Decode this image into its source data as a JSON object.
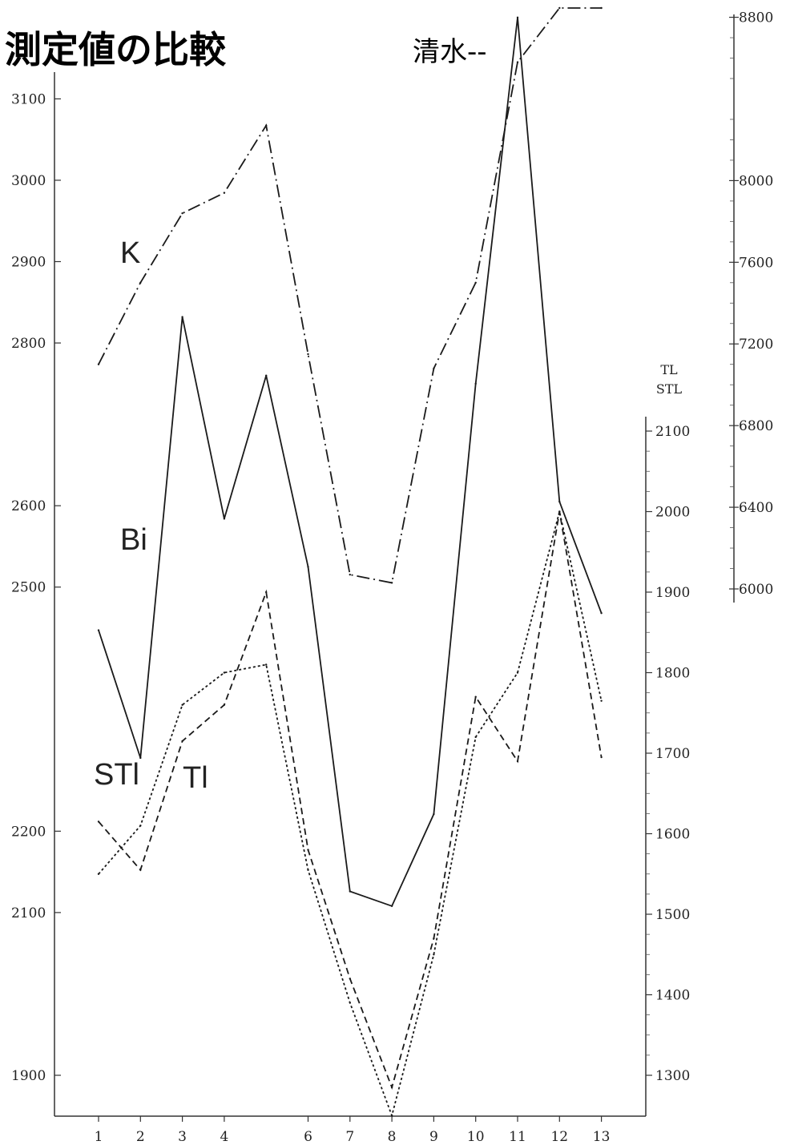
{
  "title": "測定値の比較",
  "subtitle": "清水--",
  "chart_data": {
    "type": "line",
    "x": [
      1,
      2,
      3,
      4,
      5,
      6,
      7,
      8,
      9,
      10,
      11,
      12,
      13
    ],
    "x_tick_labels": [
      "1",
      "2",
      "3",
      "4",
      "6",
      "7",
      "8",
      "9",
      "10",
      "11",
      "12",
      "13"
    ],
    "x_tick_values": [
      1,
      2,
      3,
      4,
      6,
      7,
      8,
      9,
      10,
      11,
      12,
      13
    ],
    "axes": {
      "left": {
        "ticks": [
          3100,
          3000,
          2900,
          2800,
          2600,
          2500,
          2200,
          2100,
          1900
        ],
        "tick_labels": [
          "3100",
          "3000",
          "2900",
          "2800",
          "2600",
          "2500",
          "2200",
          "2100",
          "1900"
        ],
        "range": [
          1860,
          3200
        ]
      },
      "right_k": {
        "label": "K",
        "ticks": [
          8800,
          8000,
          7600,
          7200,
          6800,
          6400,
          6000
        ],
        "tick_labels": [
          "8800",
          "8000",
          "7600",
          "7200",
          "6800",
          "6400",
          "6000"
        ]
      },
      "right_tl": {
        "label": "TL\nSTL",
        "label_lines": [
          "TL",
          "STL"
        ],
        "ticks": [
          2100,
          2000,
          1900,
          1800,
          1700,
          1600,
          1500,
          1400,
          1300
        ],
        "tick_labels": [
          "2100",
          "2000",
          "1900",
          "1800",
          "1700",
          "1600",
          "1500",
          "1400",
          "1300"
        ],
        "range": [
          1250,
          2115
        ]
      }
    },
    "series": [
      {
        "name": "K",
        "axis": "right_k",
        "style": "dash-dot",
        "values": [
          7100,
          7500,
          7840,
          7940,
          8270,
          7150,
          6070,
          6030,
          7080,
          7500,
          8580,
          8940,
          8880
        ]
      },
      {
        "name": "Bi",
        "axis": "left",
        "style": "solid",
        "values": [
          2447,
          2290,
          2832,
          2584,
          2760,
          2525,
          2126,
          2108,
          2221,
          2750,
          3200,
          2605,
          2468
        ]
      },
      {
        "name": "STl",
        "axis": "right_tl",
        "style": "dotted",
        "values": [
          1550,
          1610,
          1760,
          1800,
          1810,
          1555,
          1390,
          1250,
          1450,
          1720,
          1800,
          2000,
          1765
        ]
      },
      {
        "name": "Tl",
        "axis": "right_tl",
        "style": "dashed",
        "values": [
          1615,
          1555,
          1715,
          1760,
          1900,
          1580,
          1420,
          1285,
          1470,
          1770,
          1690,
          2000,
          1695
        ]
      }
    ],
    "series_labels": [
      "K",
      "Bi",
      "STl",
      "Tl"
    ],
    "grid": false
  }
}
